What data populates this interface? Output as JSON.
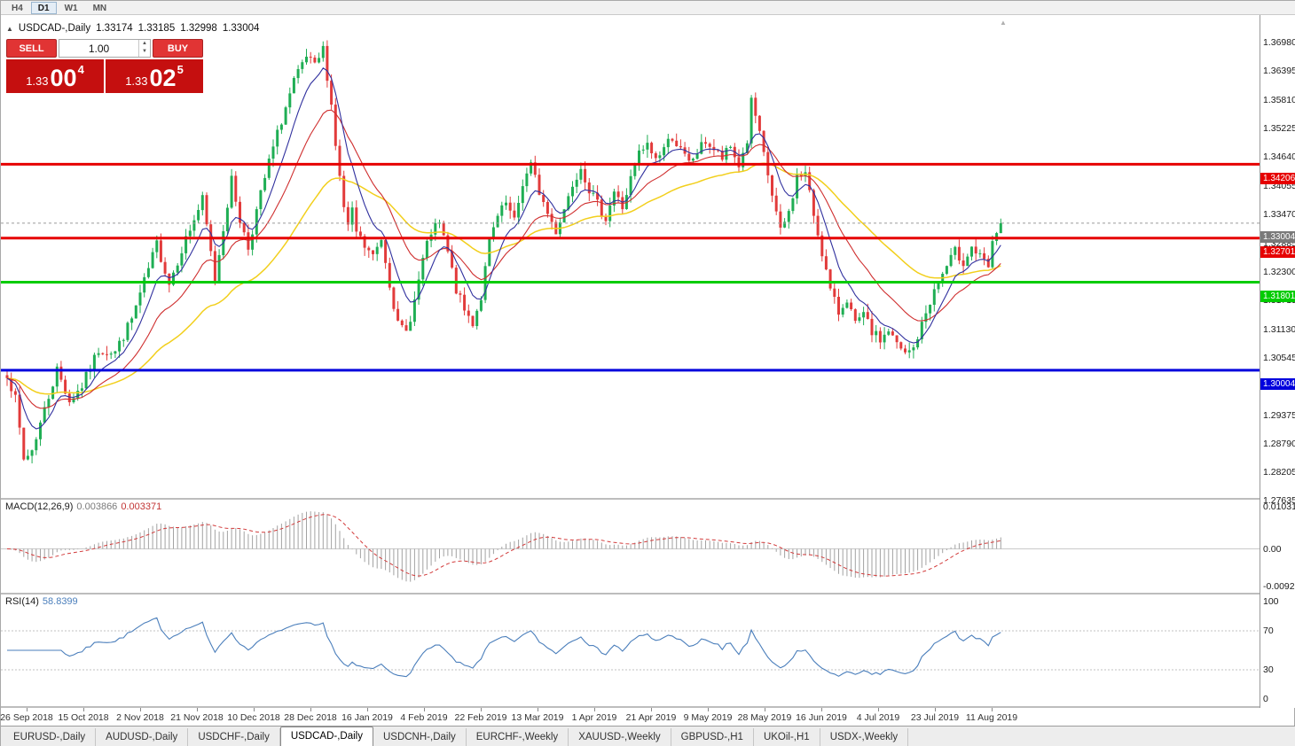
{
  "window": {
    "title": "USDCAD-,Daily"
  },
  "toolbar": {
    "timeframes": [
      {
        "label": "H4",
        "active": false
      },
      {
        "label": "D1",
        "active": true
      },
      {
        "label": "W1",
        "active": false
      },
      {
        "label": "MN",
        "active": false
      }
    ]
  },
  "chart_header": {
    "symbol_title": "USDCAD-,Daily",
    "open": "1.33174",
    "high": "1.33185",
    "low": "1.32998",
    "close": "1.33004"
  },
  "trade_panel": {
    "sell_label": "SELL",
    "buy_label": "BUY",
    "volume": "1.00",
    "sell_price": {
      "prefix": "1.33",
      "big": "00",
      "sup": "4"
    },
    "buy_price": {
      "prefix": "1.33",
      "big": "02",
      "sup": "5"
    }
  },
  "current_price": {
    "label": "1.33004"
  },
  "levels": [
    {
      "price": 1.34206,
      "label": "1.34206",
      "color": "#e60000"
    },
    {
      "price": 1.32701,
      "label": "1.32701",
      "color": "#e60000"
    },
    {
      "price": 1.31801,
      "label": "1.31801",
      "color": "#00cc00"
    },
    {
      "price": 1.30004,
      "label": "1.30004",
      "color": "#0000dd"
    }
  ],
  "price_axis_labels": [
    "1.36980",
    "1.36395",
    "1.35810",
    "1.35225",
    "1.34640",
    "1.34055",
    "1.33470",
    "1.32885",
    "1.32300",
    "1.31715",
    "1.31130",
    "1.30545",
    "1.29960",
    "1.29375",
    "1.28790",
    "1.28205",
    "1.27635"
  ],
  "macd_panel": {
    "label": "MACD(12,26,9)",
    "value_main": "0.003866",
    "value_signal": "0.003371",
    "axis": [
      "0.010311",
      "0.00",
      "-0.009204"
    ]
  },
  "rsi_panel": {
    "label": "RSI(14)",
    "value": "58.8399",
    "axis": [
      "100",
      "70",
      "30",
      "0"
    ]
  },
  "tabs": [
    {
      "label": "EURUSD-,Daily",
      "active": false
    },
    {
      "label": "AUDUSD-,Daily",
      "active": false
    },
    {
      "label": "USDCHF-,Daily",
      "active": false
    },
    {
      "label": "USDCAD-,Daily",
      "active": true
    },
    {
      "label": "USDCNH-,Daily",
      "active": false
    },
    {
      "label": "EURCHF-,Weekly",
      "active": false
    },
    {
      "label": "XAUUSD-,Weekly",
      "active": false
    },
    {
      "label": "GBPUSD-,H1",
      "active": false
    },
    {
      "label": "UKOil-,H1",
      "active": false
    },
    {
      "label": "USDX-,Weekly",
      "active": false
    }
  ],
  "colors": {
    "bull": "#1fae54",
    "bear": "#e23b3b",
    "ma_fast": "#30309e",
    "ma_med": "#cf2e2e",
    "ma_slow": "#f2cf1c",
    "macd_hist": "#a2a2a2",
    "macd_signal": "#d23b3b",
    "rsi": "#4a7ebb",
    "current_line": "#9a9a9a",
    "current_badge": "#7a7a7a"
  },
  "chart_data": {
    "type": "candlestick",
    "symbol": "USDCAD",
    "timeframe": "Daily",
    "last_price": 1.33004,
    "price_max": 1.3725,
    "price_min": 1.274,
    "candle_count": 240,
    "candle_step": 4.6875,
    "x_labels": [
      "26 Sep 2018",
      "15 Oct 2018",
      "2 Nov 2018",
      "21 Nov 2018",
      "10 Dec 2018",
      "28 Dec 2018",
      "16 Jan 2019",
      "4 Feb 2019",
      "22 Feb 2019",
      "13 Mar 2019",
      "1 Apr 2019",
      "21 Apr 2019",
      "9 May 2019",
      "28 May 2019",
      "16 Jun 2019",
      "4 Jul 2019",
      "23 Jul 2019",
      "11 Aug 2019"
    ],
    "horizontal_levels": [
      1.34206,
      1.32701,
      1.31801,
      1.30004
    ],
    "indicators": {
      "ma_periods": [
        8,
        20,
        48
      ],
      "macd": [
        12,
        26,
        9
      ],
      "rsi": 14
    },
    "close_anchors": [
      [
        0,
        1.2995
      ],
      [
        2,
        1.294
      ],
      [
        4,
        1.2818
      ],
      [
        6,
        1.2838
      ],
      [
        9,
        1.292
      ],
      [
        12,
        1.3002
      ],
      [
        15,
        1.2938
      ],
      [
        18,
        1.2968
      ],
      [
        22,
        1.3042
      ],
      [
        26,
        1.3038
      ],
      [
        30,
        1.3105
      ],
      [
        33,
        1.318
      ],
      [
        36,
        1.3258
      ],
      [
        39,
        1.3178
      ],
      [
        42,
        1.3248
      ],
      [
        45,
        1.3308
      ],
      [
        47,
        1.3348
      ],
      [
        50,
        1.3185
      ],
      [
        52,
        1.3292
      ],
      [
        54,
        1.3388
      ],
      [
        56,
        1.3308
      ],
      [
        58,
        1.325
      ],
      [
        60,
        1.3325
      ],
      [
        63,
        1.3425
      ],
      [
        66,
        1.351
      ],
      [
        69,
        1.3588
      ],
      [
        72,
        1.3638
      ],
      [
        74,
        1.3618
      ],
      [
        76,
        1.3655
      ],
      [
        77,
        1.3602
      ],
      [
        78,
        1.3542
      ],
      [
        79,
        1.3462
      ],
      [
        80,
        1.3392
      ],
      [
        81,
        1.3332
      ],
      [
        82,
        1.3292
      ],
      [
        83,
        1.3322
      ],
      [
        84,
        1.3282
      ],
      [
        86,
        1.3252
      ],
      [
        88,
        1.3232
      ],
      [
        90,
        1.327
      ],
      [
        92,
        1.318
      ],
      [
        94,
        1.3092
      ],
      [
        96,
        1.3078
      ],
      [
        98,
        1.3142
      ],
      [
        100,
        1.3225
      ],
      [
        102,
        1.3282
      ],
      [
        104,
        1.3298
      ],
      [
        106,
        1.324
      ],
      [
        108,
        1.3165
      ],
      [
        110,
        1.3122
      ],
      [
        112,
        1.3098
      ],
      [
        114,
        1.315
      ],
      [
        116,
        1.3262
      ],
      [
        118,
        1.3312
      ],
      [
        120,
        1.334
      ],
      [
        122,
        1.3302
      ],
      [
        124,
        1.3382
      ],
      [
        126,
        1.3418
      ],
      [
        128,
        1.3365
      ],
      [
        130,
        1.332
      ],
      [
        132,
        1.3285
      ],
      [
        134,
        1.333
      ],
      [
        136,
        1.3382
      ],
      [
        138,
        1.3418
      ],
      [
        140,
        1.337
      ],
      [
        142,
        1.3338
      ],
      [
        144,
        1.3312
      ],
      [
        146,
        1.3365
      ],
      [
        148,
        1.3332
      ],
      [
        150,
        1.339
      ],
      [
        152,
        1.3442
      ],
      [
        154,
        1.3458
      ],
      [
        156,
        1.3432
      ],
      [
        158,
        1.3455
      ],
      [
        160,
        1.3478
      ],
      [
        162,
        1.3448
      ],
      [
        164,
        1.3422
      ],
      [
        166,
        1.3445
      ],
      [
        168,
        1.3468
      ],
      [
        170,
        1.345
      ],
      [
        172,
        1.3432
      ],
      [
        174,
        1.3455
      ],
      [
        176,
        1.3418
      ],
      [
        178,
        1.3468
      ],
      [
        179,
        1.3548
      ],
      [
        180,
        1.3518
      ],
      [
        182,
        1.3438
      ],
      [
        184,
        1.3358
      ],
      [
        186,
        1.3282
      ],
      [
        188,
        1.3322
      ],
      [
        190,
        1.3395
      ],
      [
        192,
        1.3402
      ],
      [
        194,
        1.3318
      ],
      [
        196,
        1.3242
      ],
      [
        198,
        1.3162
      ],
      [
        200,
        1.3118
      ],
      [
        202,
        1.3148
      ],
      [
        204,
        1.3092
      ],
      [
        206,
        1.3112
      ],
      [
        208,
        1.3078
      ],
      [
        210,
        1.3062
      ],
      [
        212,
        1.3082
      ],
      [
        214,
        1.3052
      ],
      [
        216,
        1.3032
      ],
      [
        218,
        1.3045
      ],
      [
        220,
        1.3092
      ],
      [
        222,
        1.3142
      ],
      [
        224,
        1.318
      ],
      [
        226,
        1.3212
      ],
      [
        228,
        1.3242
      ],
      [
        230,
        1.3222
      ],
      [
        232,
        1.3252
      ],
      [
        234,
        1.323
      ],
      [
        236,
        1.321
      ],
      [
        237,
        1.3255
      ],
      [
        238,
        1.3285
      ],
      [
        239,
        1.33004
      ]
    ]
  }
}
